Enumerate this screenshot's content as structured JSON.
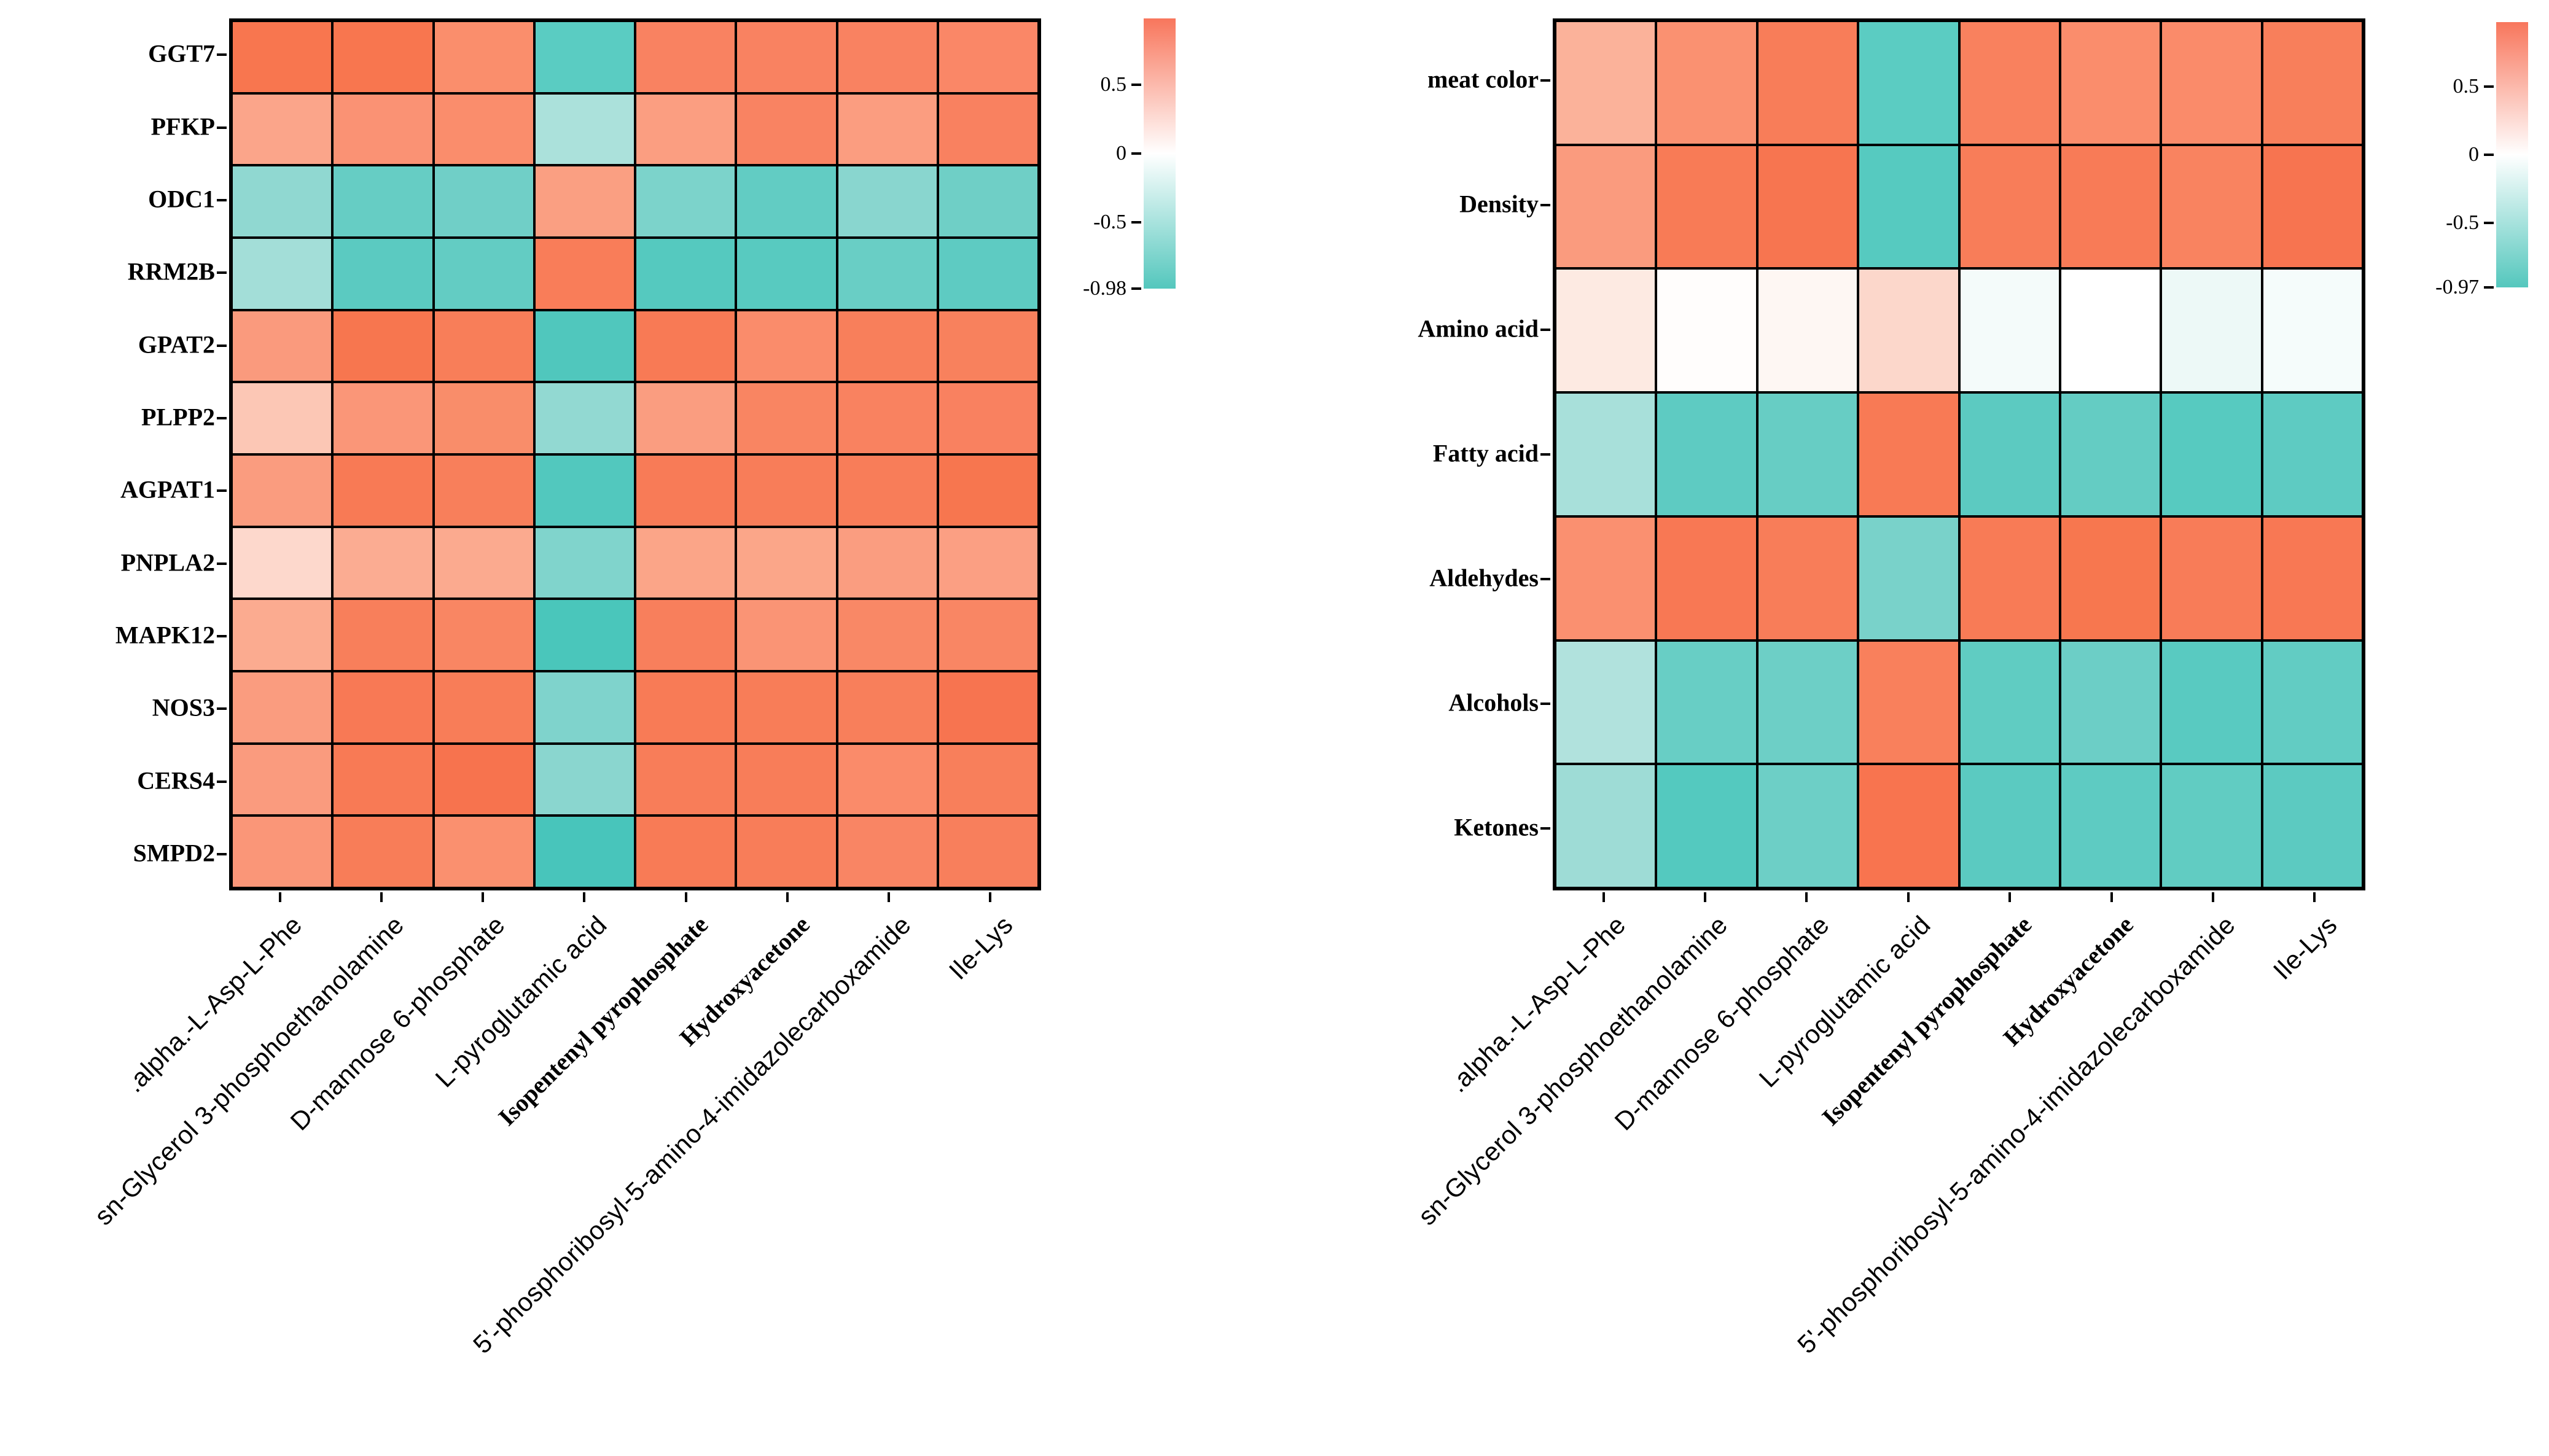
{
  "figure": {
    "background": "#FFFFFF",
    "description": "Two correlation heatmaps: genes vs metabolites (left) and meat-quality traits vs metabolites (right)"
  },
  "palette": {
    "positive_max": "#F8765C",
    "zero": "#FFFFFF",
    "negative_max": "#4CC5BB",
    "grid_line": "#000000"
  },
  "chart_data": [
    {
      "id": "gene-metabolite-heatmap",
      "type": "heatmap",
      "title": "",
      "legend_position": "right",
      "grid": true,
      "rows": [
        "GGT7",
        "PFKP",
        "ODC1",
        "RRM2B",
        "GPAT2",
        "PLPP2",
        "AGPAT1",
        "PNPLA2",
        "MAPK12",
        "NOS3",
        "CERS4",
        "SMPD2"
      ],
      "columns": [
        ".alpha.-L-Asp-L-Phe",
        "sn-Glycerol 3-phosphoethanolamine",
        "D-mannose 6-phosphate",
        "L-pyroglutamic acid",
        "Isopentenyl pyrophosphate",
        "Hydroxyacetone",
        "5'-phosphoribosyl-5-amino-4-imidazolecarboxamide",
        "Ile-Lys"
      ],
      "column_label_styles": [
        "sans",
        "sans",
        "sans",
        "sans",
        "serif-bold",
        "serif-bold",
        "sans",
        "sans"
      ],
      "values": [
        [
          0.84,
          0.84,
          0.62,
          -0.74,
          0.74,
          0.74,
          0.74,
          0.68
        ],
        [
          0.45,
          0.58,
          0.62,
          -0.36,
          0.52,
          0.78,
          0.61,
          0.77
        ],
        [
          -0.52,
          -0.7,
          -0.65,
          0.5,
          -0.6,
          -0.72,
          -0.55,
          -0.66
        ],
        [
          -0.43,
          -0.75,
          -0.72,
          0.77,
          -0.79,
          -0.77,
          -0.68,
          -0.74
        ],
        [
          0.53,
          0.84,
          0.78,
          -0.84,
          0.81,
          0.63,
          0.77,
          0.75
        ],
        [
          0.28,
          0.55,
          0.62,
          -0.51,
          0.5,
          0.72,
          0.74,
          0.74
        ],
        [
          0.52,
          0.81,
          0.76,
          -0.83,
          0.8,
          0.78,
          0.78,
          0.84
        ],
        [
          0.2,
          0.43,
          0.45,
          -0.59,
          0.47,
          0.46,
          0.52,
          0.5
        ],
        [
          0.44,
          0.76,
          0.7,
          -0.86,
          0.76,
          0.56,
          0.68,
          0.7
        ],
        [
          0.52,
          0.82,
          0.78,
          -0.6,
          0.8,
          0.78,
          0.76,
          0.85
        ],
        [
          0.53,
          0.81,
          0.85,
          -0.54,
          0.78,
          0.78,
          0.63,
          0.77
        ],
        [
          0.57,
          0.78,
          0.6,
          -0.87,
          0.8,
          0.78,
          0.71,
          0.76
        ]
      ],
      "cell_colors": [
        [
          "#F8764F",
          "#F8764F",
          "#FA8E6C",
          "#5ACCC2",
          "#F98261",
          "#F98261",
          "#F98261",
          "#FA8767"
        ],
        [
          "#FBA58A",
          "#FA9274",
          "#FA8D6C",
          "#ABE1DB",
          "#FB9E81",
          "#F98362",
          "#FB9D80",
          "#F98160"
        ],
        [
          "#90D8D1",
          "#66CDC4",
          "#70CFC7",
          "#FA9F82",
          "#7CD3CB",
          "#62CCC3",
          "#89D6CF",
          "#6FCFC6"
        ],
        [
          "#A3DED8",
          "#5BCAC1",
          "#63CCC3",
          "#F97D59",
          "#55C9BF",
          "#58CAC0",
          "#69CEC5",
          "#5ECBC2"
        ],
        [
          "#FA9A7D",
          "#F7764F",
          "#F87E59",
          "#50C7BD",
          "#F87A55",
          "#FA8C6B",
          "#F87F5B",
          "#F8815D"
        ],
        [
          "#FCC7B5",
          "#FA9678",
          "#F98D6A",
          "#92D9D2",
          "#FA9D80",
          "#F98562",
          "#F98260",
          "#F98160"
        ],
        [
          "#FA9C7F",
          "#F87A55",
          "#F87F5B",
          "#52C8BE",
          "#F87B57",
          "#F87D59",
          "#F87D59",
          "#F7764F"
        ],
        [
          "#FDD8CC",
          "#FBAC92",
          "#FBAA8F",
          "#80D4CC",
          "#FBA588",
          "#FBA689",
          "#FA9D80",
          "#FB9F83"
        ],
        [
          "#FBAB90",
          "#F87F5B",
          "#F98663",
          "#4AC6BB",
          "#F87F5C",
          "#FA9475",
          "#F98866",
          "#F98664"
        ],
        [
          "#FA9C7F",
          "#F87955",
          "#F87D58",
          "#7FD3CC",
          "#F87B56",
          "#F87D58",
          "#F87F5B",
          "#F77450"
        ],
        [
          "#FA9B7E",
          "#F87A55",
          "#F7734E",
          "#8AD6CF",
          "#F87D59",
          "#F87D59",
          "#FA8B6A",
          "#F87F5B"
        ],
        [
          "#FA9678",
          "#F87D58",
          "#FA906F",
          "#48C5BB",
          "#F87B56",
          "#F87D59",
          "#F98564",
          "#F87F5C"
        ]
      ],
      "colorbar": {
        "max": 0.98,
        "min": -0.98,
        "top_color": "#F8765C",
        "mid_color": "#FFFFFF",
        "bottom_color": "#54C7BD",
        "ticks": [
          {
            "label": "0.5",
            "value": 0.5
          },
          {
            "label": "0",
            "value": 0
          },
          {
            "label": "-0.5",
            "value": -0.5
          },
          {
            "label": "-0.98",
            "value": -0.98
          }
        ]
      }
    },
    {
      "id": "trait-metabolite-heatmap",
      "type": "heatmap",
      "title": "",
      "legend_position": "right",
      "grid": true,
      "rows": [
        "meat color",
        "Density",
        "Amino acid",
        "Fatty acid",
        "Aldehydes",
        "Alcohols",
        "Ketones"
      ],
      "columns": [
        ".alpha.-L-Asp-L-Phe",
        "sn-Glycerol 3-phosphoethanolamine",
        "D-mannose 6-phosphate",
        "L-pyroglutamic acid",
        "Isopentenyl pyrophosphate",
        "Hydroxyacetone",
        "5'-phosphoribosyl-5-amino-4-imidazolecarboxamide",
        "Ile-Lys"
      ],
      "column_label_styles": [
        "sans",
        "sans",
        "sans",
        "sans",
        "serif-bold",
        "serif-bold",
        "sans",
        "sans"
      ],
      "values": [
        [
          0.4,
          0.6,
          0.77,
          -0.73,
          0.74,
          0.63,
          0.65,
          0.76
        ],
        [
          0.52,
          0.79,
          0.83,
          -0.77,
          0.78,
          0.79,
          0.72,
          0.84
        ],
        [
          0.1,
          0.01,
          0.04,
          0.19,
          -0.04,
          0.0,
          -0.09,
          -0.05
        ],
        [
          -0.44,
          -0.73,
          -0.68,
          0.79,
          -0.74,
          -0.7,
          -0.76,
          -0.73
        ],
        [
          0.61,
          0.8,
          0.77,
          -0.63,
          0.78,
          0.82,
          0.78,
          0.8
        ],
        [
          -0.4,
          -0.68,
          -0.66,
          0.74,
          -0.72,
          -0.67,
          -0.75,
          -0.71
        ],
        [
          -0.48,
          -0.78,
          -0.66,
          0.84,
          -0.74,
          -0.73,
          -0.72,
          -0.74
        ]
      ],
      "cell_colors": [
        [
          "#FBB29A",
          "#FA9171",
          "#F87D59",
          "#5BCCC2",
          "#F9815E",
          "#FA8D6C",
          "#FA8B6A",
          "#F87F5B"
        ],
        [
          "#FA9B7E",
          "#F87B56",
          "#F77550",
          "#56CAC0",
          "#F87D59",
          "#F87B57",
          "#F98360",
          "#F77450"
        ],
        [
          "#FDEAE2",
          "#FFFDFC",
          "#FEF7F3",
          "#FCD7CB",
          "#F4FBFA",
          "#FFFFFF",
          "#EDF9F7",
          "#F5FCFB"
        ],
        [
          "#A8E0DA",
          "#5ECBC2",
          "#67CDC4",
          "#F87A55",
          "#5CCAC1",
          "#64CCC3",
          "#57CAC0",
          "#5ECBC2"
        ],
        [
          "#FA9070",
          "#F87854",
          "#F87D59",
          "#79D2CA",
          "#F87B56",
          "#F7774F",
          "#F87C58",
          "#F87854"
        ],
        [
          "#B1E2DD",
          "#68CEC5",
          "#6DCFC6",
          "#F9805C",
          "#60CCC2",
          "#6CCEC6",
          "#59CAC1",
          "#62CCC3"
        ],
        [
          "#9EDCD6",
          "#54C9BF",
          "#6DCFC6",
          "#F8744F",
          "#5BCAC1",
          "#5ECBC2",
          "#61CCC2",
          "#5CCAC1"
        ]
      ],
      "colorbar": {
        "max": 0.97,
        "min": -0.97,
        "top_color": "#F8765C",
        "mid_color": "#FFFFFF",
        "bottom_color": "#54C7BD",
        "ticks": [
          {
            "label": "0.5",
            "value": 0.5
          },
          {
            "label": "0",
            "value": 0
          },
          {
            "label": "-0.5",
            "value": -0.5
          },
          {
            "label": "-0.97",
            "value": -0.97
          }
        ]
      }
    }
  ]
}
